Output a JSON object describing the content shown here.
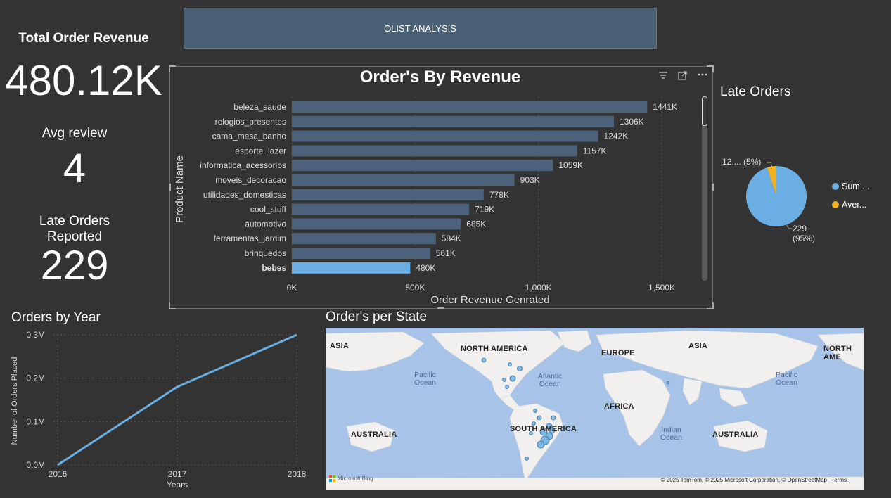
{
  "header": {
    "title": "OLIST ANALYSIS"
  },
  "kpis": {
    "revenue_label": "Total Order Revenue",
    "revenue_value": "480.12K",
    "review_label": "Avg review",
    "review_value": "4",
    "late_label_line1": "Late Orders",
    "late_label_line2": "Reported",
    "late_value": "229"
  },
  "bar_chart": {
    "icons": [
      "filter-icon",
      "focus-mode-icon",
      "more-options-icon"
    ],
    "colors": {
      "bar": "#4c627a",
      "highlight": "#6aaee3",
      "grid": "#555555"
    }
  },
  "chart_data": [
    {
      "type": "bar",
      "orientation": "horizontal",
      "title": "Order's By Revenue",
      "xlabel": "Order Revenue Genrated",
      "ylabel": "Product Name",
      "categories": [
        "beleza_saude",
        "relogios_presentes",
        "cama_mesa_banho",
        "esporte_lazer",
        "informatica_acessorios",
        "moveis_decoracao",
        "utilidades_domesticas",
        "cool_stuff",
        "automotivo",
        "ferramentas_jardim",
        "brinquedos",
        "bebes"
      ],
      "values": [
        1441,
        1306,
        1242,
        1157,
        1059,
        903,
        778,
        719,
        685,
        584,
        561,
        480
      ],
      "data_labels": [
        "1441K",
        "1306K",
        "1242K",
        "1157K",
        "1059K",
        "903K",
        "778K",
        "719K",
        "685K",
        "584K",
        "561K",
        "480K"
      ],
      "highlighted": "bebes",
      "xlim": [
        0,
        1500
      ],
      "xticks": [
        0,
        500,
        1000,
        1500
      ],
      "xtick_labels": [
        "0K",
        "500K",
        "1,000K",
        "1,500K"
      ]
    },
    {
      "type": "pie",
      "title": "Late Orders",
      "slices": [
        {
          "name": "Sum ...",
          "value": 229,
          "percent": 95,
          "label": "229",
          "pct_label": "(95%)",
          "color": "#6aaee3"
        },
        {
          "name": "Aver...",
          "value": 12,
          "percent": 5,
          "label": "12.... (5%)",
          "color": "#f2b01e"
        }
      ],
      "legend": "right"
    },
    {
      "type": "line",
      "title": "Orders by Year",
      "xlabel": "Years",
      "ylabel": "Number of Orders Placed",
      "x": [
        "2016",
        "2017",
        "2018"
      ],
      "values": [
        0.0,
        0.18,
        0.3
      ],
      "ylim": [
        0,
        0.3
      ],
      "yticks": [
        0,
        0.1,
        0.2,
        0.3
      ],
      "ytick_labels": [
        "0.0M",
        "0.1M",
        "0.2M",
        "0.3M"
      ],
      "color": "#6aaee3"
    }
  ],
  "map": {
    "title": "Order's per State",
    "continents": [
      "ASIA",
      "NORTH AMERICA",
      "EUROPE",
      "ASIA",
      "NORTH AME",
      "AFRICA",
      "SOUTH AMERICA",
      "AUSTRALIA",
      "AUSTRALIA"
    ],
    "oceans": [
      {
        "line1": "Pacific",
        "line2": "Ocean"
      },
      {
        "line1": "Atlantic",
        "line2": "Ocean"
      },
      {
        "line1": "Pacific",
        "line2": "Ocean"
      },
      {
        "line1": "Indian",
        "line2": "Ocean"
      }
    ],
    "brand": "Microsoft Bing",
    "copyright": "© 2025 TomTom, © 2025 Microsoft Corporation,",
    "osm_link": "© OpenStreetMap",
    "terms_link": "Terms"
  }
}
